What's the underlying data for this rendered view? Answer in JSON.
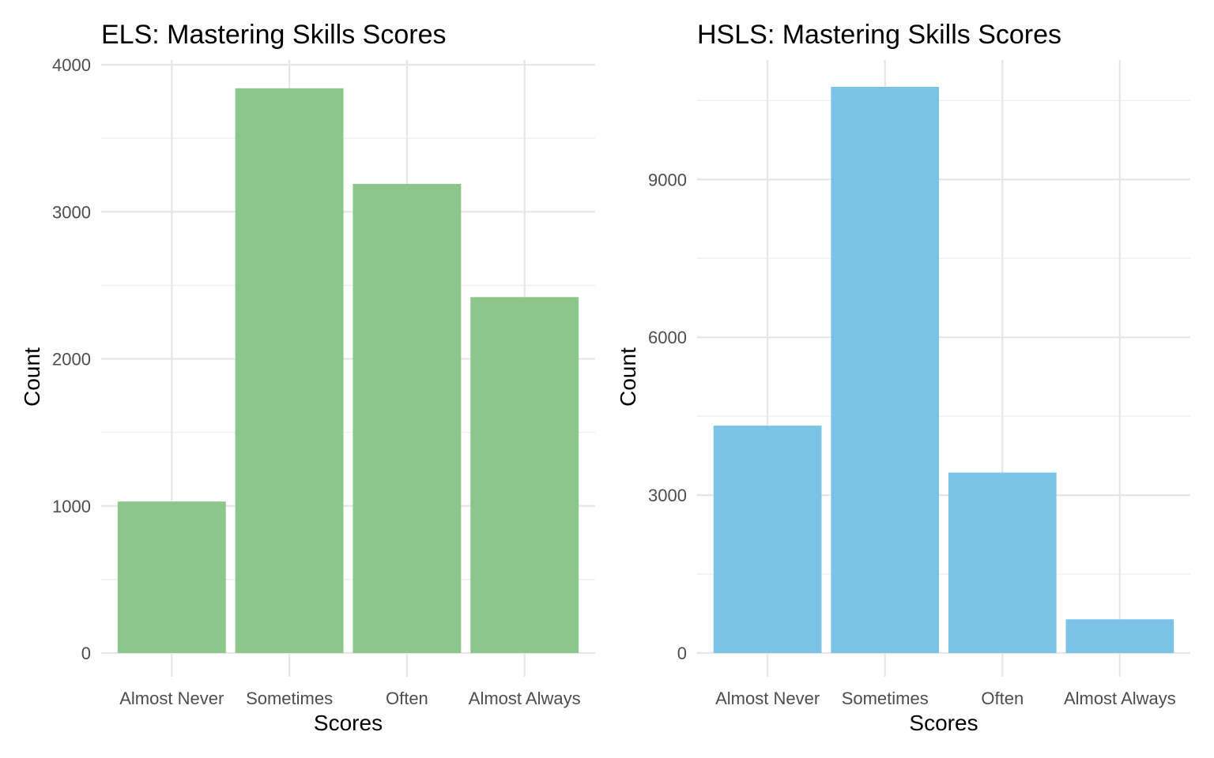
{
  "chart_data": [
    {
      "type": "bar",
      "title": "ELS: Mastering Skills Scores",
      "xlabel": "Scores",
      "ylabel": "Count",
      "categories": [
        "Almost Never",
        "Sometimes",
        "Often",
        "Almost Always"
      ],
      "values": [
        1030,
        3840,
        3190,
        2420
      ],
      "ylim": [
        0,
        4000
      ],
      "yticks": [
        0,
        1000,
        2000,
        3000,
        4000
      ],
      "yticks_minor": [
        500,
        1500,
        2500,
        3500
      ],
      "ytick_labels": [
        "0",
        "1000",
        "2000",
        "3000",
        "4000"
      ],
      "bar_color": "#8CC68A",
      "grid": true,
      "legend": "none"
    },
    {
      "type": "bar",
      "title": "HSLS: Mastering Skills Scores",
      "xlabel": "Scores",
      "ylabel": "Count",
      "categories": [
        "Almost Never",
        "Sometimes",
        "Often",
        "Almost Always"
      ],
      "values": [
        4320,
        10760,
        3430,
        640
      ],
      "ylim": [
        0,
        10760
      ],
      "yticks": [
        0,
        3000,
        6000,
        9000
      ],
      "yticks_minor": [
        1500,
        4500,
        7500,
        10500
      ],
      "ytick_labels": [
        "0",
        "3000",
        "6000",
        "9000"
      ],
      "bar_color": "#7AC3E6",
      "grid": true,
      "legend": "none"
    }
  ]
}
